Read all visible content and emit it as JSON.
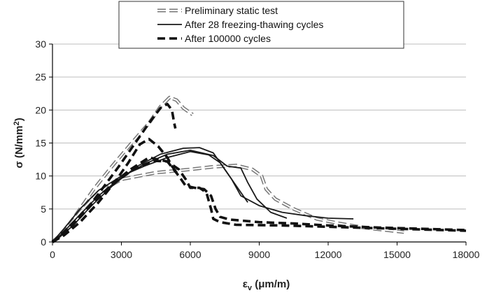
{
  "chart_data": {
    "type": "line",
    "title": "",
    "xlabel_main": "ε",
    "xlabel_sub": "v",
    "xlabel_rest": " (μm/m)",
    "ylabel_main": "σ (N/mm",
    "ylabel_sup": "2",
    "ylabel_end": ")",
    "xlim": [
      0,
      18000
    ],
    "ylim": [
      0,
      30
    ],
    "xticks": [
      0,
      3000,
      6000,
      9000,
      12000,
      15000,
      18000
    ],
    "yticks": [
      0,
      5,
      10,
      15,
      20,
      25,
      30
    ],
    "xtick_labels": [
      "0",
      "3000",
      "6000",
      "9000",
      "12000",
      "15000",
      "18000"
    ],
    "ytick_labels": [
      "0",
      "5",
      "10",
      "15",
      "20",
      "25",
      "30"
    ],
    "grid": "horizontal",
    "legend_position": "top-center",
    "legend": [
      {
        "label": "Preliminary static test",
        "style": "outline-dash"
      },
      {
        "label": "After 28 freezing-thawing cycles",
        "style": "solid"
      },
      {
        "label": "After 100000 cycles",
        "style": "bold-dash"
      }
    ],
    "series": [
      {
        "name": "Preliminary static test",
        "style": "outline-dash",
        "curves": [
          [
            [
              0,
              0
            ],
            [
              400,
              1
            ],
            [
              1000,
              4
            ],
            [
              1800,
              8
            ],
            [
              2600,
              11.5
            ],
            [
              3400,
              14.8
            ],
            [
              4200,
              18
            ],
            [
              4700,
              20.5
            ],
            [
              5100,
              21.9
            ],
            [
              5400,
              21.5
            ],
            [
              5700,
              20.3
            ],
            [
              6100,
              19.3
            ]
          ],
          [
            [
              0,
              0
            ],
            [
              500,
              1.5
            ],
            [
              1200,
              4.5
            ],
            [
              2000,
              7.5
            ],
            [
              3000,
              9.5
            ],
            [
              4500,
              10.5
            ],
            [
              6000,
              11
            ],
            [
              7000,
              11.4
            ],
            [
              8000,
              11.6
            ],
            [
              8700,
              11
            ],
            [
              9100,
              10
            ],
            [
              9300,
              8
            ],
            [
              9700,
              6.5
            ],
            [
              10500,
              5
            ],
            [
              11500,
              3.5
            ],
            [
              12500,
              2.8
            ],
            [
              13500,
              2.2
            ],
            [
              14500,
              1.8
            ],
            [
              15300,
              1.5
            ]
          ]
        ]
      },
      {
        "name": "After 28 freezing-thawing cycles",
        "style": "solid",
        "curves": [
          [
            [
              0,
              0
            ],
            [
              500,
              2
            ],
            [
              1200,
              5
            ],
            [
              2000,
              7.8
            ],
            [
              3000,
              10
            ],
            [
              4000,
              11.5
            ],
            [
              5000,
              12.8
            ],
            [
              6000,
              13.7
            ],
            [
              6800,
              13.2
            ],
            [
              7300,
              12
            ],
            [
              7800,
              9.5
            ],
            [
              8200,
              7
            ],
            [
              9000,
              5.5
            ],
            [
              10000,
              4.5
            ],
            [
              11000,
              4
            ],
            [
              12000,
              3.6
            ],
            [
              13100,
              3.5
            ]
          ],
          [
            [
              0,
              0
            ],
            [
              400,
              1.2
            ],
            [
              1100,
              3.8
            ],
            [
              2000,
              7
            ],
            [
              3000,
              9.8
            ],
            [
              4000,
              11.8
            ],
            [
              5000,
              13.3
            ],
            [
              6000,
              13.9
            ],
            [
              7000,
              13.1
            ],
            [
              7600,
              11.5
            ],
            [
              8200,
              11.2
            ],
            [
              8500,
              9
            ],
            [
              8900,
              6.5
            ],
            [
              9500,
              4.5
            ],
            [
              10200,
              3.6
            ]
          ],
          [
            [
              0,
              0
            ],
            [
              300,
              0.7
            ],
            [
              900,
              2.5
            ],
            [
              1700,
              5.5
            ],
            [
              2700,
              8.8
            ],
            [
              3700,
              11.5
            ],
            [
              4700,
              13.3
            ],
            [
              5700,
              14.2
            ],
            [
              6400,
              14.3
            ],
            [
              7000,
              13.5
            ],
            [
              7500,
              11
            ],
            [
              7900,
              9
            ],
            [
              8500,
              6
            ]
          ]
        ]
      },
      {
        "name": "After 100000 cycles",
        "style": "bold-dash",
        "curves": [
          [
            [
              0,
              0
            ],
            [
              500,
              1
            ],
            [
              1200,
              3
            ],
            [
              2000,
              6
            ],
            [
              2700,
              9
            ],
            [
              3300,
              12
            ],
            [
              3800,
              14.8
            ],
            [
              4200,
              15.6
            ],
            [
              4600,
              14.5
            ],
            [
              5000,
              12.8
            ],
            [
              5200,
              11.5
            ],
            [
              5400,
              10.5
            ]
          ],
          [
            [
              0,
              0
            ],
            [
              600,
              1.5
            ],
            [
              1400,
              4.5
            ],
            [
              2200,
              8.2
            ],
            [
              2900,
              11.5
            ],
            [
              3600,
              15
            ],
            [
              4200,
              18
            ],
            [
              4700,
              20.3
            ],
            [
              5000,
              20.9
            ],
            [
              5200,
              20
            ],
            [
              5300,
              18
            ],
            [
              5350,
              17.2
            ]
          ],
          [
            [
              0,
              0
            ],
            [
              500,
              1.5
            ],
            [
              1200,
              4
            ],
            [
              2000,
              6.8
            ],
            [
              2800,
              9.2
            ],
            [
              3600,
              11.2
            ],
            [
              4400,
              12.3
            ],
            [
              5000,
              12.2
            ],
            [
              5500,
              10
            ],
            [
              5800,
              8.5
            ],
            [
              6200,
              8.2
            ],
            [
              6600,
              8
            ],
            [
              6900,
              7
            ],
            [
              7100,
              5
            ],
            [
              7300,
              3.8
            ],
            [
              7700,
              3.4
            ],
            [
              9000,
              3
            ],
            [
              10500,
              2.8
            ],
            [
              12000,
              2.5
            ],
            [
              14000,
              2.2
            ],
            [
              16000,
              2
            ],
            [
              18000,
              1.8
            ]
          ],
          [
            [
              0,
              0
            ],
            [
              400,
              1
            ],
            [
              1000,
              3
            ],
            [
              1800,
              6
            ],
            [
              2600,
              8.8
            ],
            [
              3400,
              11
            ],
            [
              4200,
              12.8
            ],
            [
              5000,
              12.2
            ],
            [
              5500,
              11
            ],
            [
              5800,
              9.5
            ],
            [
              6000,
              8.2
            ],
            [
              6400,
              8.2
            ],
            [
              6700,
              7.5
            ],
            [
              6900,
              5
            ],
            [
              7000,
              3.5
            ],
            [
              7300,
              3
            ],
            [
              8000,
              2.6
            ],
            [
              10000,
              2.5
            ],
            [
              12000,
              2.3
            ],
            [
              14000,
              2.1
            ],
            [
              16000,
              1.9
            ],
            [
              18000,
              1.7
            ]
          ]
        ]
      }
    ]
  }
}
